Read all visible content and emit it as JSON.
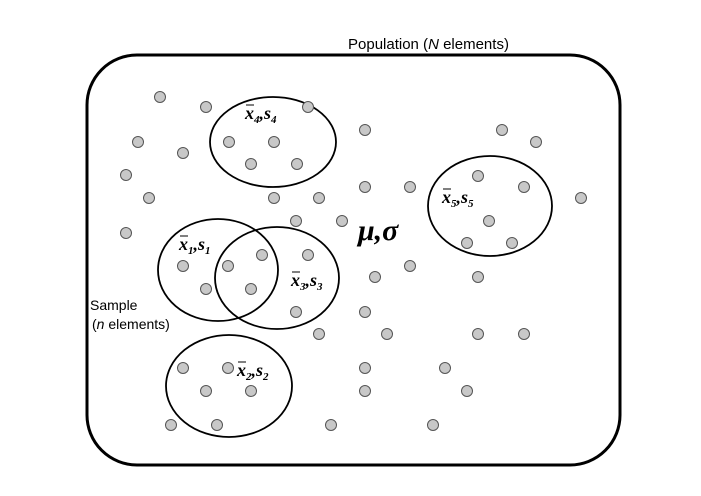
{
  "population": {
    "label_prefix": "Population (",
    "label_var": "N",
    "label_suffix": " elements)",
    "parameters": "μ,σ"
  },
  "sample_note": {
    "line1": "Sample",
    "line2_var": "n",
    "line2_suffix": " elements)",
    "line2_prefix": "("
  },
  "samples": [
    {
      "mean": "x",
      "mean_sub": "1",
      "sd": "s",
      "sd_sub": "1"
    },
    {
      "mean": "x",
      "mean_sub": "2",
      "sd": "s",
      "sd_sub": "2"
    },
    {
      "mean": "x",
      "mean_sub": "3",
      "sd": "s",
      "sd_sub": "3"
    },
    {
      "mean": "x",
      "mean_sub": "4",
      "sd": "s",
      "sd_sub": "4"
    },
    {
      "mean": "x",
      "mean_sub": "5",
      "sd": "s",
      "sd_sub": "5"
    }
  ],
  "colors": {
    "stroke": "#000000",
    "dot_fill": "#c8c8c8",
    "dot_stroke": "#555555"
  }
}
